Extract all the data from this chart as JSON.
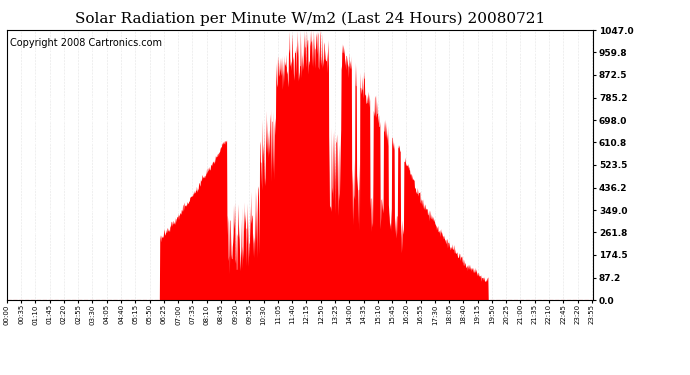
{
  "title": "Solar Radiation per Minute W/m2 (Last 24 Hours) 20080721",
  "copyright": "Copyright 2008 Cartronics.com",
  "y_ticks": [
    0.0,
    87.2,
    174.5,
    261.8,
    349.0,
    436.2,
    523.5,
    610.8,
    698.0,
    785.2,
    872.5,
    959.8,
    1047.0
  ],
  "ylim": [
    0.0,
    1047.0
  ],
  "fill_color": "#ff0000",
  "bg_color": "#ffffff",
  "grid_h_color": "#cccccc",
  "grid_v_color": "#cccccc",
  "dashed_line_color": "#ff0000",
  "title_fontsize": 11,
  "copyright_fontsize": 7,
  "tick_step_minutes": 35
}
